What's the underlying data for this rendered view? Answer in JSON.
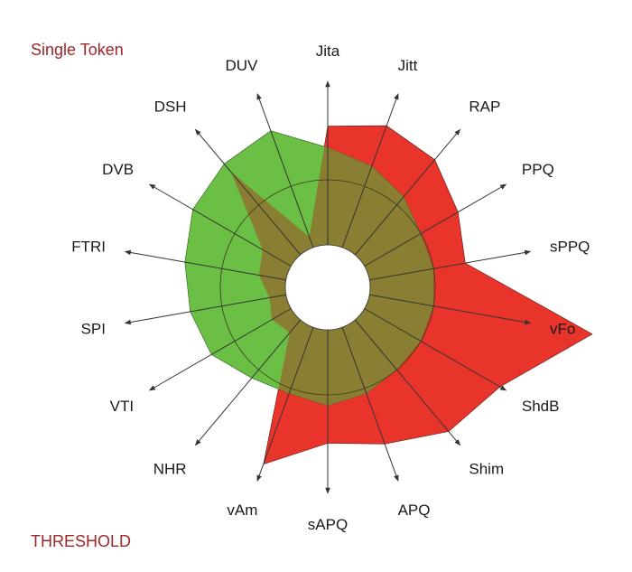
{
  "captions": {
    "top": "Single Token",
    "bottom": "THRESHOLD"
  },
  "chart_data": {
    "type": "radar",
    "axes": [
      "Jita",
      "Jitt",
      "RAP",
      "PPQ",
      "sPPQ",
      "vFo",
      "ShdB",
      "Shim",
      "APQ",
      "sAPQ",
      "vAm",
      "NHR",
      "VTI",
      "SPI",
      "FTRI",
      "DVB",
      "DSH",
      "DUV"
    ],
    "series": [
      {
        "color": "#e8342a",
        "values": [
          1.5,
          1.6,
          1.55,
          1.4,
          1.3,
          2.5,
          1.85,
          1.75,
          1.55,
          1.45,
          1.75,
          0.55,
          0.6,
          0.55,
          0.65,
          0.7,
          1.4,
          0.5
        ]
      },
      {
        "color": "#6bbf45",
        "values": [
          1.3,
          1.2,
          1.1,
          1.0,
          1.0,
          1.0,
          1.0,
          1.0,
          1.05,
          1.1,
          1.05,
          1.1,
          1.25,
          1.3,
          1.35,
          1.45,
          1.5,
          1.55
        ]
      }
    ],
    "overlap_color": "#8a7e32",
    "reference_ring": 1.0
  }
}
